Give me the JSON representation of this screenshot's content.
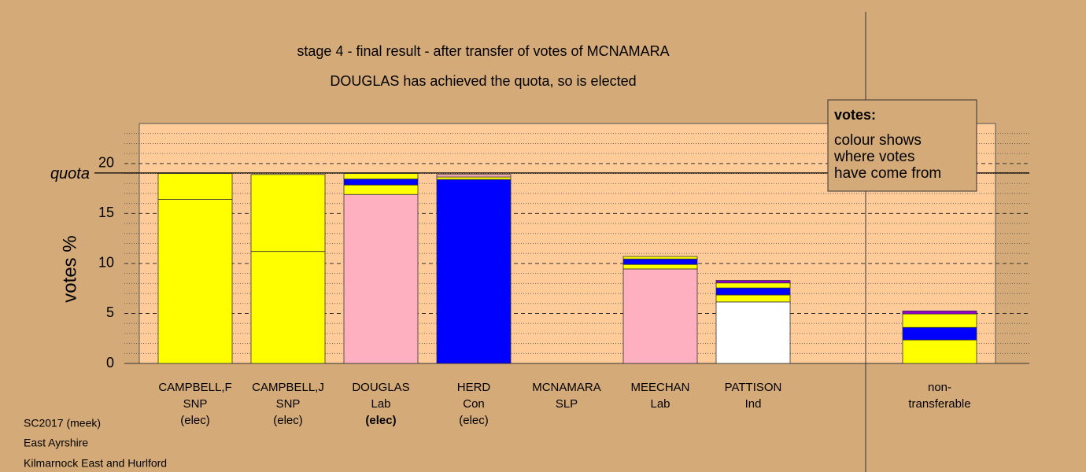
{
  "chart_data": {
    "type": "stacked_bar",
    "title": "stage 4 - final result - after transfer of votes of MCNAMARA",
    "subtitle": "DOUGLAS has achieved the quota, so is elected",
    "y_label": "votes %",
    "quota": {
      "label": "quota",
      "value": 19.05
    },
    "ylim": [
      0,
      24
    ],
    "yticks": [
      0,
      5,
      10,
      15,
      20
    ],
    "minor_yticks": [
      1,
      2,
      3,
      4,
      6,
      7,
      8,
      9,
      11,
      12,
      13,
      14,
      16,
      17,
      18,
      19,
      21,
      22,
      23
    ],
    "legend": {
      "title": "votes:",
      "lines": [
        "colour shows",
        "where votes",
        "have come from"
      ]
    },
    "bars": [
      {
        "labels": [
          "CAMPBELL,F",
          "SNP",
          "(elec)"
        ],
        "segments": [
          {
            "color": "#ffff00",
            "value": 16.4
          },
          {
            "color": "#ffff00",
            "value": 2.6
          }
        ]
      },
      {
        "labels": [
          "CAMPBELL,J",
          "SNP",
          "(elec)"
        ],
        "segments": [
          {
            "color": "#ffff00",
            "value": 11.2
          },
          {
            "color": "#ffff00",
            "value": 7.7
          }
        ]
      },
      {
        "labels": [
          "DOUGLAS",
          "Lab",
          "(elec)"
        ],
        "bold_last": true,
        "segments": [
          {
            "color": "#ffb0c0",
            "value": 16.9
          },
          {
            "color": "#ffff00",
            "value": 0.95
          },
          {
            "color": "#0000ff",
            "value": 0.6
          },
          {
            "color": "#ffff00",
            "value": 0.55
          }
        ]
      },
      {
        "labels": [
          "HERD",
          "Con",
          "(elec)"
        ],
        "segments": [
          {
            "color": "#0000ff",
            "value": 18.4
          },
          {
            "color": "#ffff00",
            "value": 0.25
          },
          {
            "color": "#ffb0c0",
            "value": 0.25
          }
        ]
      },
      {
        "labels": [
          "MCNAMARA",
          "SLP"
        ],
        "segments": [
          {
            "color": "#ffff00",
            "value": 0
          }
        ]
      },
      {
        "labels": [
          "MEECHAN",
          "Lab"
        ],
        "segments": [
          {
            "color": "#ffb0c0",
            "value": 9.45
          },
          {
            "color": "#ffff00",
            "value": 0.45
          },
          {
            "color": "#0000ff",
            "value": 0.55
          },
          {
            "color": "#ffff00",
            "value": 0.25
          }
        ]
      },
      {
        "labels": [
          "PATTISON",
          "Ind"
        ],
        "segments": [
          {
            "color": "#ffffff",
            "value": 6.15
          },
          {
            "color": "#ffff00",
            "value": 0.7
          },
          {
            "color": "#0000ff",
            "value": 0.7
          },
          {
            "color": "#ffff00",
            "value": 0.5
          },
          {
            "color": "#9900cc",
            "value": 0.25
          }
        ]
      },
      {
        "labels": [
          "non-",
          "transferable"
        ],
        "segments": [
          {
            "color": "#ffff00",
            "value": 2.35
          },
          {
            "color": "#0000ff",
            "value": 1.25
          },
          {
            "color": "#ffff00",
            "value": 1.35
          },
          {
            "color": "#9900cc",
            "value": 0.3
          }
        ]
      }
    ],
    "footer": [
      "SC2017 (meek)",
      "East Ayrshire",
      "Kilmarnock East and Hurlford"
    ]
  }
}
